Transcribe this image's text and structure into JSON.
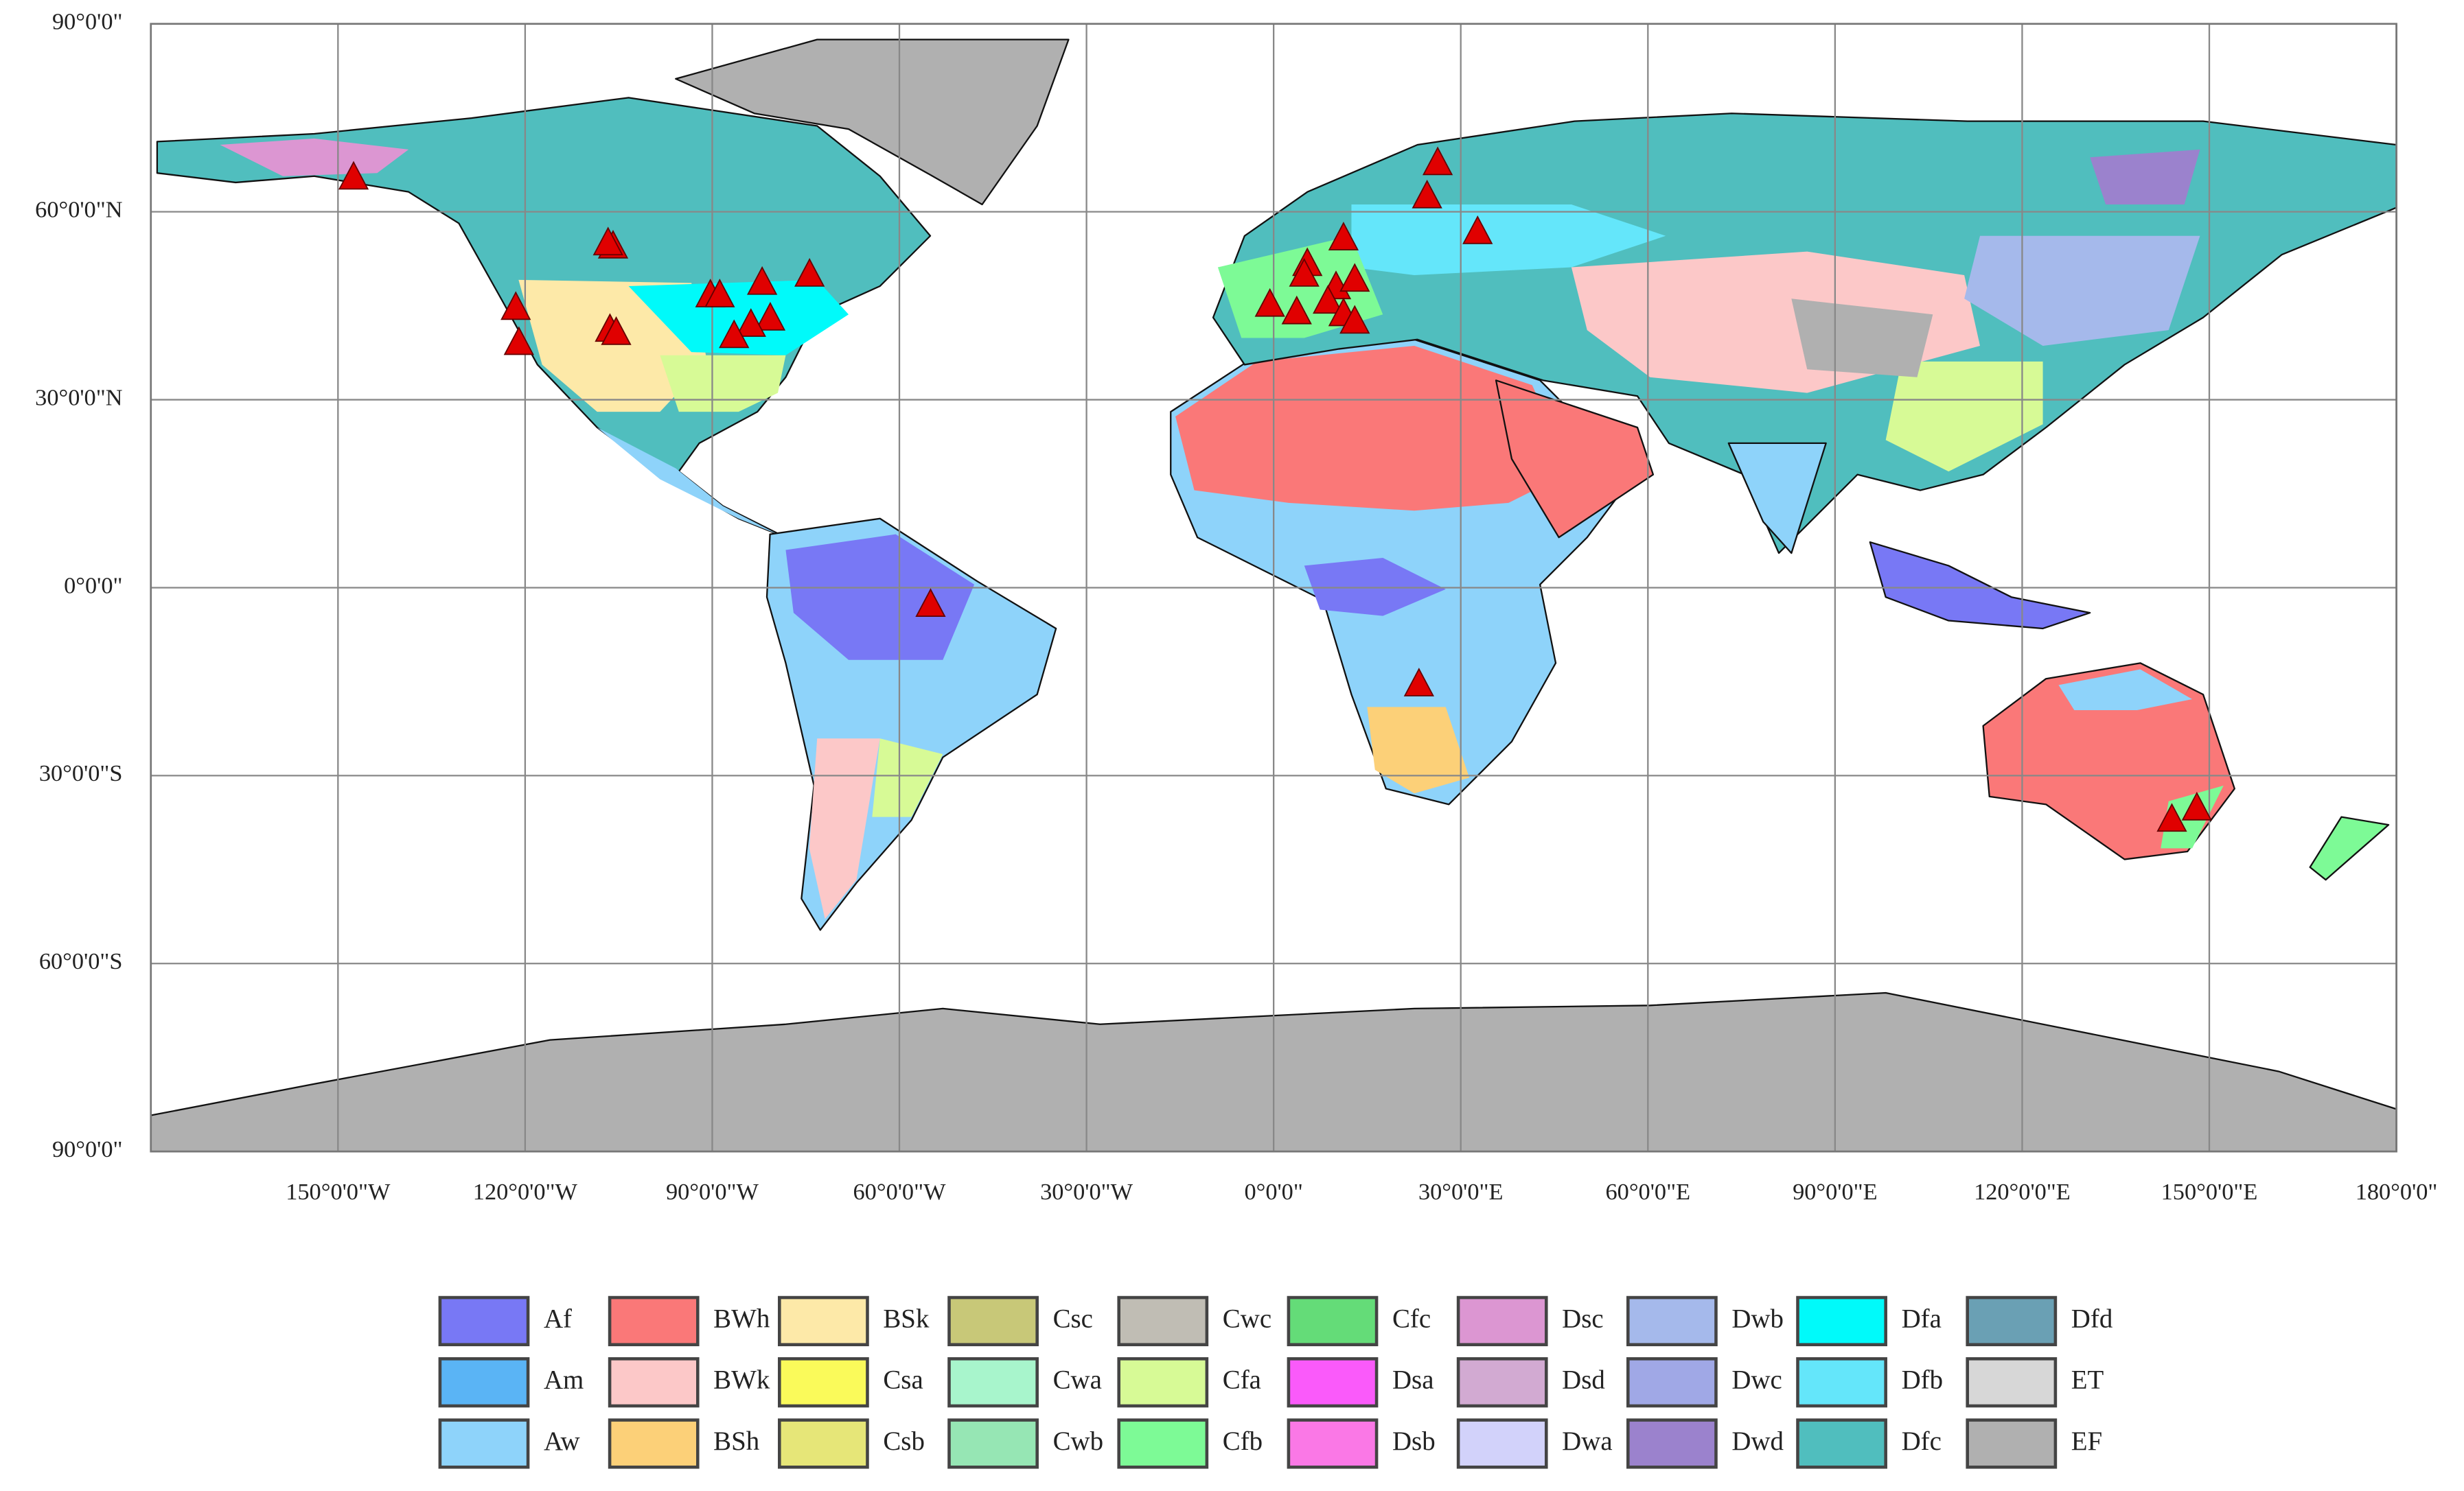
{
  "map": {
    "xticks": [
      {
        "value": -150,
        "label": "150°0'0\"W"
      },
      {
        "value": -120,
        "label": "120°0'0\"W"
      },
      {
        "value": -90,
        "label": "90°0'0\"W"
      },
      {
        "value": -60,
        "label": "60°0'0\"W"
      },
      {
        "value": -30,
        "label": "30°0'0\"W"
      },
      {
        "value": 0,
        "label": "0°0'0\""
      },
      {
        "value": 30,
        "label": "30°0'0\"E"
      },
      {
        "value": 60,
        "label": "60°0'0\"E"
      },
      {
        "value": 90,
        "label": "90°0'0\"E"
      },
      {
        "value": 120,
        "label": "120°0'0\"E"
      },
      {
        "value": 150,
        "label": "150°0'0\"E"
      },
      {
        "value": 180,
        "label": "180°0'0\""
      }
    ],
    "yticks": [
      {
        "value": 90,
        "label": "90°0'0\""
      },
      {
        "value": 60,
        "label": "60°0'0\"N"
      },
      {
        "value": 30,
        "label": "30°0'0\"N"
      },
      {
        "value": 0,
        "label": "0°0'0\""
      },
      {
        "value": -30,
        "label": "30°0'0\"S"
      },
      {
        "value": -60,
        "label": "60°0'0\"S"
      },
      {
        "value": -90,
        "label": "90°0'0\""
      }
    ],
    "sites": [
      {
        "lon": -147.5,
        "lat": 65.4
      },
      {
        "lon": -105.9,
        "lat": 54.4
      },
      {
        "lon": -106.7,
        "lat": 54.9
      },
      {
        "lon": -121.5,
        "lat": 44.6
      },
      {
        "lon": -121.0,
        "lat": 39.0
      },
      {
        "lon": -106.4,
        "lat": 41.1
      },
      {
        "lon": -105.4,
        "lat": 40.6
      },
      {
        "lon": -90.3,
        "lat": 46.6
      },
      {
        "lon": -88.8,
        "lat": 46.6
      },
      {
        "lon": -82.0,
        "lat": 48.6
      },
      {
        "lon": -74.4,
        "lat": 49.9
      },
      {
        "lon": -80.7,
        "lat": 42.9
      },
      {
        "lon": -83.8,
        "lat": 41.9
      },
      {
        "lon": -86.5,
        "lat": 40.1
      },
      {
        "lon": -55.0,
        "lat": -2.8
      },
      {
        "lon": -0.6,
        "lat": 45.1
      },
      {
        "lon": 3.7,
        "lat": 43.9
      },
      {
        "lon": 5.4,
        "lat": 51.6
      },
      {
        "lon": 4.9,
        "lat": 49.9
      },
      {
        "lon": 11.2,
        "lat": 55.7
      },
      {
        "lon": 10.0,
        "lat": 47.9
      },
      {
        "lon": 8.7,
        "lat": 45.6
      },
      {
        "lon": 13.0,
        "lat": 49.1
      },
      {
        "lon": 11.2,
        "lat": 43.6
      },
      {
        "lon": 13.0,
        "lat": 42.4
      },
      {
        "lon": 26.3,
        "lat": 67.7
      },
      {
        "lon": 24.6,
        "lat": 62.4
      },
      {
        "lon": 32.7,
        "lat": 56.7
      },
      {
        "lon": 23.3,
        "lat": -15.5
      },
      {
        "lon": 144.0,
        "lat": -37.1
      },
      {
        "lon": 148.0,
        "lat": -35.3
      }
    ],
    "legend": [
      {
        "code": "Af",
        "color": "#7878f5"
      },
      {
        "code": "Am",
        "color": "#5ab4f5"
      },
      {
        "code": "Aw",
        "color": "#8ed3fa"
      },
      {
        "code": "BWh",
        "color": "#fa7878"
      },
      {
        "code": "BWk",
        "color": "#fcc8c8"
      },
      {
        "code": "BSh",
        "color": "#fcd078"
      },
      {
        "code": "BSk",
        "color": "#fde9a8"
      },
      {
        "code": "Csa",
        "color": "#fafa5a"
      },
      {
        "code": "Csb",
        "color": "#e6e678"
      },
      {
        "code": "Csc",
        "color": "#c8c878"
      },
      {
        "code": "Cwa",
        "color": "#a8f5cc"
      },
      {
        "code": "Cwb",
        "color": "#96e6b4"
      },
      {
        "code": "Cwc",
        "color": "#c0bdb4"
      },
      {
        "code": "Cfa",
        "color": "#d7fa96"
      },
      {
        "code": "Cfb",
        "color": "#7dfa96"
      },
      {
        "code": "Cfc",
        "color": "#64dc78"
      },
      {
        "code": "Dsa",
        "color": "#fa5afa"
      },
      {
        "code": "Dsb",
        "color": "#fa78e6"
      },
      {
        "code": "Dsc",
        "color": "#dc96d2"
      },
      {
        "code": "Dsd",
        "color": "#d2aad2"
      },
      {
        "code": "Dwa",
        "color": "#d2d2fa"
      },
      {
        "code": "Dwb",
        "color": "#a5b9eb"
      },
      {
        "code": "Dwc",
        "color": "#a0a8e6"
      },
      {
        "code": "Dwd",
        "color": "#9b82cd"
      },
      {
        "code": "Dfa",
        "color": "#00fafa"
      },
      {
        "code": "Dfb",
        "color": "#64e6fa"
      },
      {
        "code": "Dfc",
        "color": "#50bebe"
      },
      {
        "code": "Dfd",
        "color": "#6aa0b4"
      },
      {
        "code": "ET",
        "color": "#d7d7d7"
      },
      {
        "code": "EF",
        "color": "#b0b0b0"
      }
    ]
  }
}
